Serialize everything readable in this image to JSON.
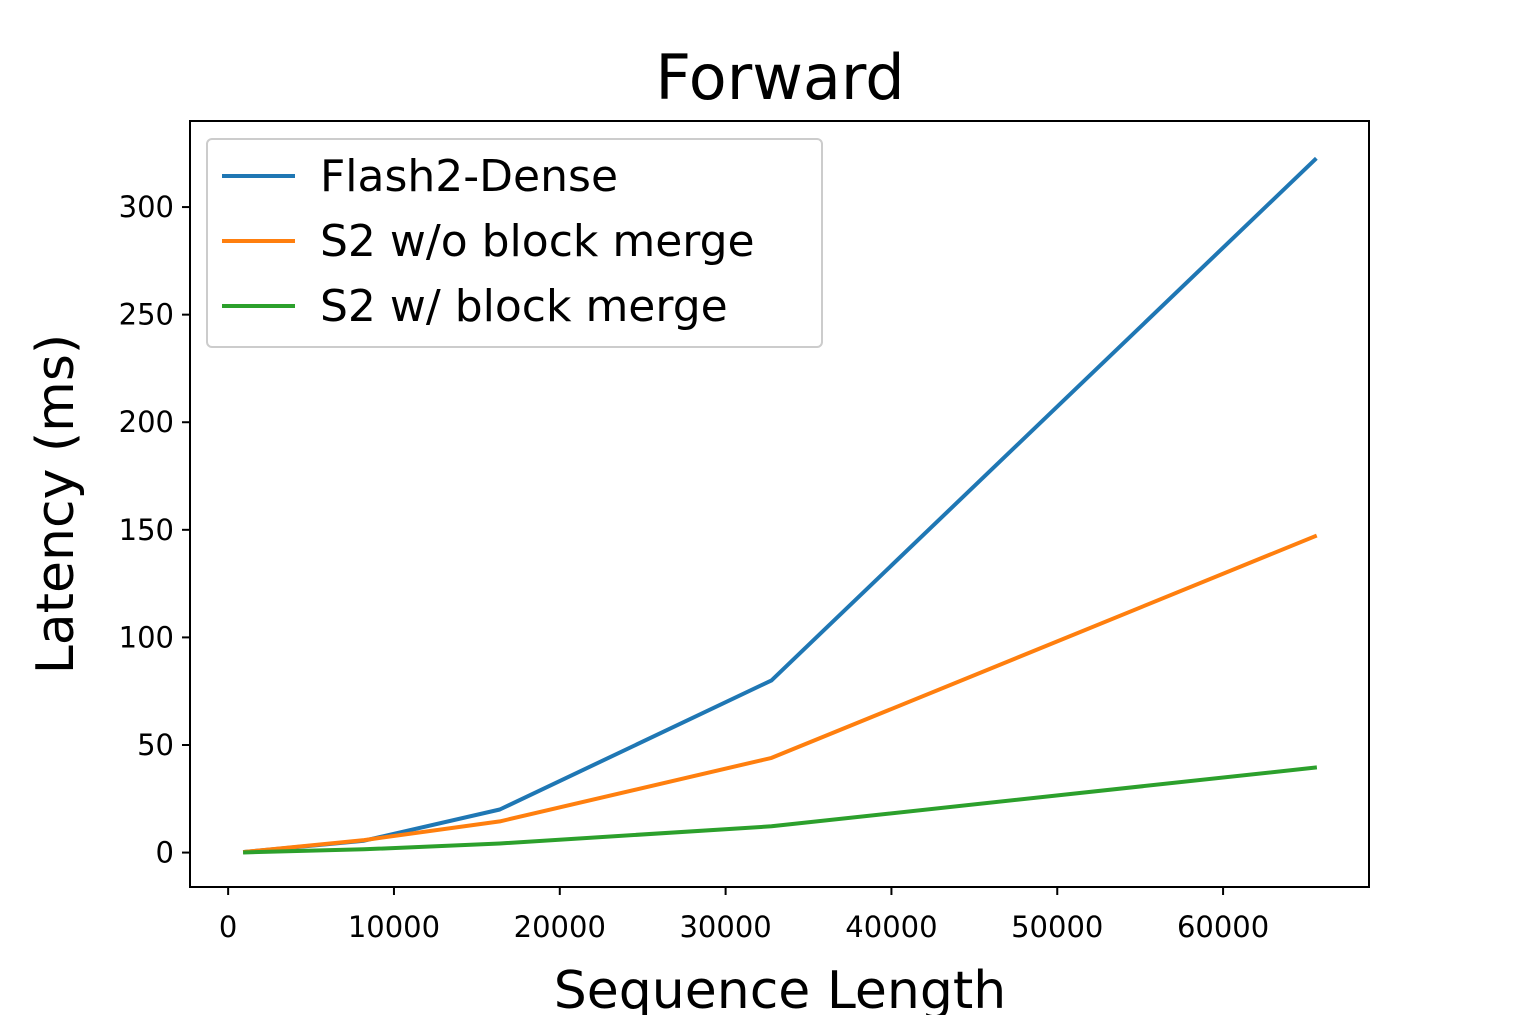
{
  "chart_data": {
    "type": "line",
    "title": "Forward",
    "xlabel": "Sequence Length",
    "ylabel": "Latency (ms)",
    "xlim": [
      -2300,
      68800
    ],
    "ylim": [
      -16,
      340
    ],
    "xticks": [
      0,
      10000,
      20000,
      30000,
      40000,
      50000,
      60000
    ],
    "yticks": [
      0,
      50,
      100,
      150,
      200,
      250,
      300
    ],
    "x": [
      1024,
      8192,
      16384,
      32768,
      65536
    ],
    "series": [
      {
        "name": "Flash2-Dense",
        "color": "#1f77b4",
        "values": [
          0.3,
          5.5,
          20,
          80,
          322
        ]
      },
      {
        "name": "S2 w/o block merge",
        "color": "#ff7f0e",
        "values": [
          0.3,
          5.8,
          14.5,
          44,
          147
        ]
      },
      {
        "name": "S2 w/ block merge",
        "color": "#2ca02c",
        "values": [
          0.1,
          1.5,
          4.2,
          12.2,
          39.5
        ]
      }
    ],
    "legend_position": "top-left",
    "grid": false
  }
}
